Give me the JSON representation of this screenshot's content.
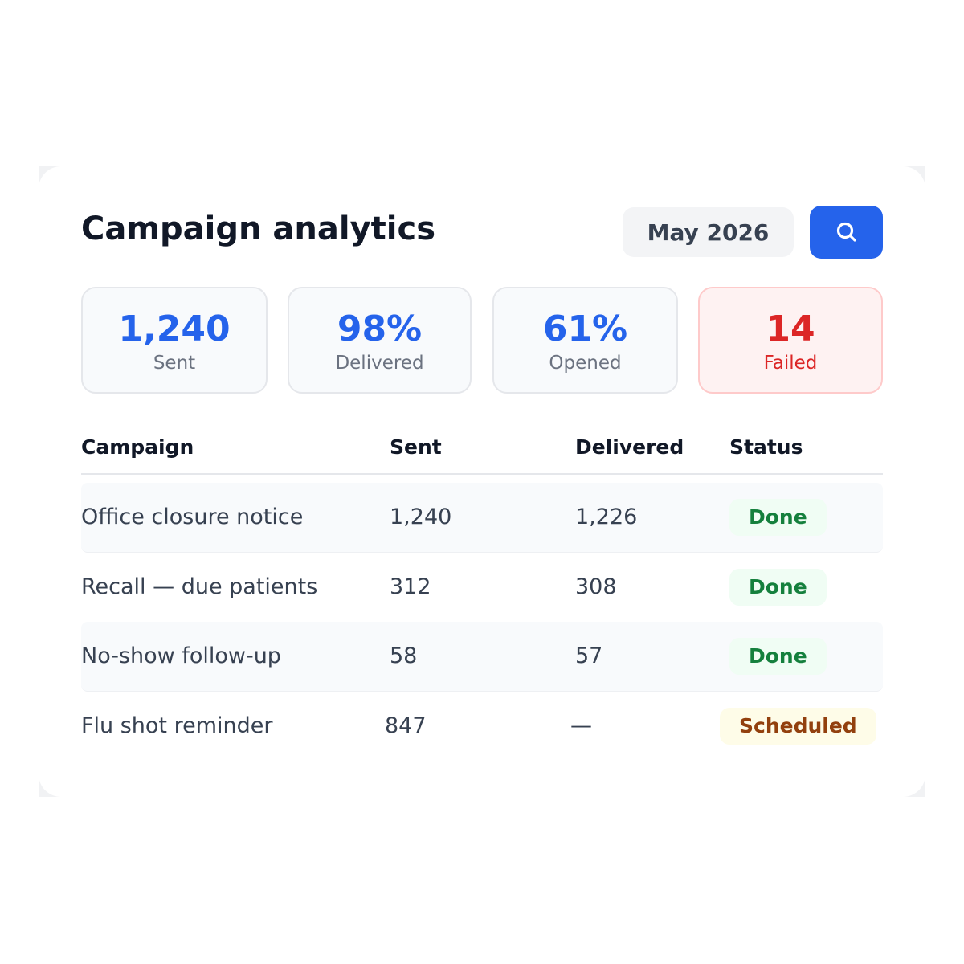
{
  "header": {
    "title": "Campaign analytics",
    "date": "May 2026"
  },
  "stats": [
    {
      "value": "1,240",
      "label": "Sent",
      "tone": "info"
    },
    {
      "value": "98%",
      "label": "Delivered",
      "tone": "info"
    },
    {
      "value": "61%",
      "label": "Opened",
      "tone": "info"
    },
    {
      "value": "14",
      "label": "Failed",
      "tone": "danger"
    }
  ],
  "table": {
    "columns": [
      "Campaign",
      "Sent",
      "Delivered",
      "Status"
    ],
    "rows": [
      {
        "cells": [
          "Office closure notice",
          "1,240",
          "1,226"
        ],
        "status": "Done",
        "tone": "success"
      },
      {
        "cells": [
          "Recall — due patients",
          "312",
          "308"
        ],
        "status": "Done",
        "tone": "success"
      },
      {
        "cells": [
          "No-show follow-up",
          "58",
          "57"
        ],
        "status": "Done",
        "tone": "success"
      },
      {
        "cells": [
          "Flu shot reminder",
          "847",
          "—"
        ],
        "status": "Scheduled",
        "tone": "warning"
      }
    ]
  }
}
